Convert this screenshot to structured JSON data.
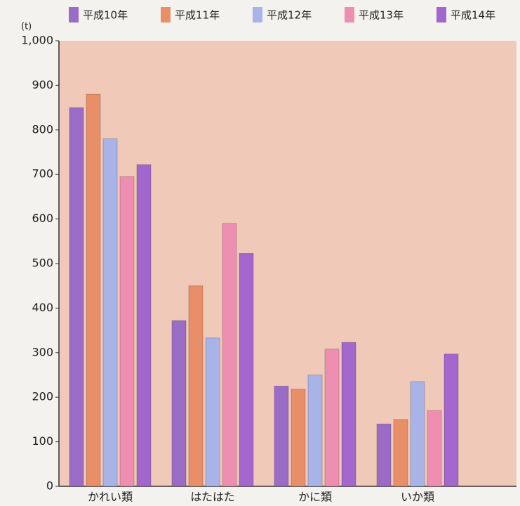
{
  "chart_data": {
    "type": "bar",
    "y_unit": "(t)",
    "categories": [
      "かれい類",
      "はたはた",
      "かに類",
      "いか類"
    ],
    "series": [
      {
        "name": "平成10年",
        "color": "#9a6cc6",
        "values": [
          850,
          372,
          225,
          140
        ]
      },
      {
        "name": "平成11年",
        "color": "#e98f68",
        "values": [
          880,
          450,
          218,
          150
        ]
      },
      {
        "name": "平成12年",
        "color": "#a8b3e8",
        "values": [
          780,
          333,
          250,
          235
        ]
      },
      {
        "name": "平成13年",
        "color": "#ee8fb2",
        "values": [
          695,
          590,
          308,
          170
        ]
      },
      {
        "name": "平成14年",
        "color": "#a266cc",
        "values": [
          722,
          523,
          323,
          297
        ]
      }
    ],
    "ylim": [
      0,
      1000
    ],
    "yticks": [
      0,
      100,
      200,
      300,
      400,
      500,
      600,
      700,
      800,
      900,
      {
        "value": 1000,
        "label": "1,000"
      }
    ],
    "grid": false
  }
}
